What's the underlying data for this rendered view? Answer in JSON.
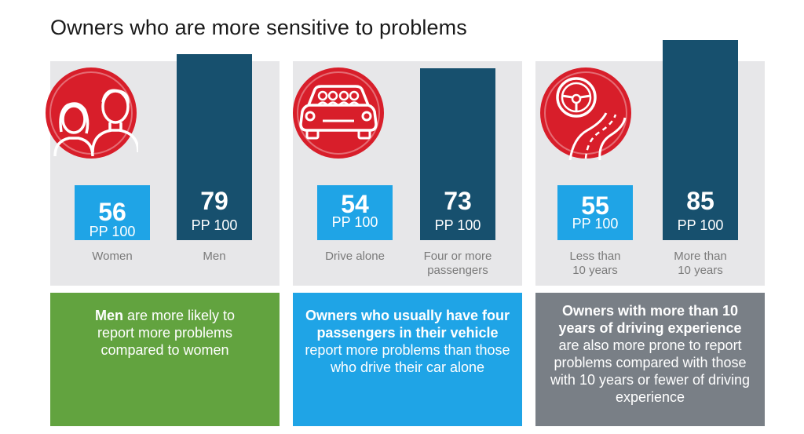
{
  "title": "Owners who are more sensitive to problems",
  "colors": {
    "red_icon": "#d81e2a",
    "light_bar": "#1fa4e6",
    "dark_bar": "#17506e",
    "panel_bg": "#e7e7e9",
    "green": "#62a33f",
    "grey": "#797f86"
  },
  "chart_data": [
    {
      "type": "bar",
      "icon": "people-icon",
      "categories": [
        "Women",
        "Men"
      ],
      "values": [
        56,
        79
      ],
      "unit": "PP 100",
      "ylim": [
        0,
        100
      ]
    },
    {
      "type": "bar",
      "icon": "car-passengers-icon",
      "categories": [
        "Drive alone",
        "Four or more passengers"
      ],
      "values": [
        54,
        73
      ],
      "unit": "PP 100",
      "ylim": [
        0,
        100
      ]
    },
    {
      "type": "bar",
      "icon": "steering-wheel-road-icon",
      "categories": [
        "Less than 10 years",
        "More than 10 years"
      ],
      "values": [
        55,
        85
      ],
      "unit": "PP 100",
      "ylim": [
        0,
        100
      ]
    }
  ],
  "boxes": [
    {
      "bold": "Men",
      "text": " are more likely to report more problems compared to women"
    },
    {
      "bold": "Owners who usually have four passengers in their vehicle",
      "text": " report more problems than those who drive their car alone"
    },
    {
      "bold": "Owners with more than 10 years of driving experience",
      "text": " are also more prone to report problems compared with those with 10 years or fewer of driving experience"
    }
  ]
}
